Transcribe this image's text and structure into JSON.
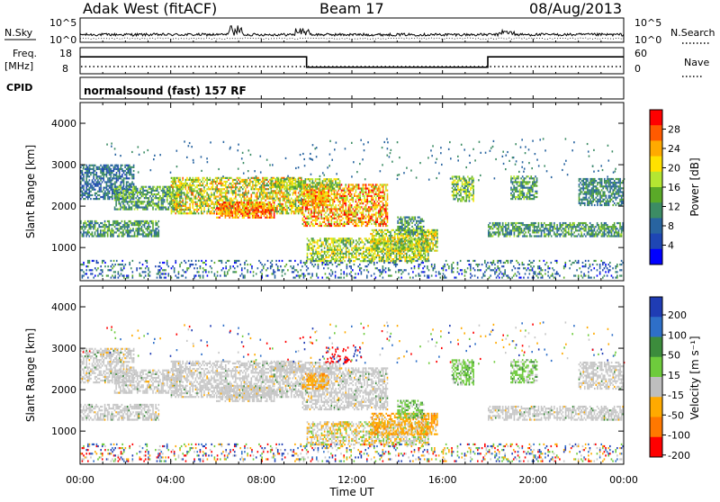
{
  "header": {
    "radar": "Adak West (fitACF)",
    "beam": "Beam 17",
    "date": "08/Aug/2013"
  },
  "strips": {
    "nsky_label": "N.Sky",
    "nsearch_label": "N.Search",
    "freq_label_line1": "Freq.",
    "freq_label_line2": "[MHz]",
    "nave_label": "Nave",
    "cpid_label": "CPID",
    "cpid_text": "normalsound (fast) 157 RF",
    "noise_ticks_left": [
      "10^5",
      "10^0"
    ],
    "noise_ticks_right": [
      "10^5",
      "10^0"
    ],
    "freq_ticks": [
      "18",
      "8"
    ],
    "nave_ticks": [
      "60",
      "0"
    ]
  },
  "colorbars": {
    "power": {
      "title": "Power [dB]",
      "ticks": [
        "28",
        "24",
        "20",
        "16",
        "12",
        "8",
        "4"
      ],
      "colors": [
        "#ff0000",
        "#ff5a00",
        "#ffaa00",
        "#ffe100",
        "#b4e632",
        "#5aaa28",
        "#3c8c64",
        "#2864a0",
        "#1e46b4",
        "#0000ff"
      ]
    },
    "velocity": {
      "title": "Velocity [m s⁻¹]",
      "ticks": [
        "200",
        "100",
        "50",
        "15",
        "-15",
        "-50",
        "-100",
        "-200"
      ],
      "colors": [
        "#1f3cb4",
        "#2e6fc8",
        "#3c8c3c",
        "#6ecb3c",
        "#bebebe",
        "#ffaa00",
        "#ff7800",
        "#ff0000"
      ]
    }
  },
  "chart_data": [
    {
      "type": "heatmap",
      "name_printed": "Power [dB]",
      "ylabel": "Slant Range [km]",
      "xlabel": "Time UT",
      "ylim": [
        200,
        4500
      ],
      "y_ticks": [
        "1000",
        "2000",
        "3000",
        "4000"
      ],
      "x_ticks": [
        "00:00",
        "04:00",
        "08:00",
        "12:00",
        "16:00",
        "20:00",
        "00:00"
      ],
      "xlim_hours": [
        0,
        24
      ]
    },
    {
      "type": "heatmap",
      "name_printed": "Velocity [m s⁻¹]",
      "ylabel": "Slant Range [km]",
      "xlabel": "Time UT",
      "ylim": [
        200,
        4500
      ],
      "y_ticks": [
        "1000",
        "2000",
        "3000",
        "4000"
      ],
      "x_ticks": [
        "00:00",
        "04:00",
        "08:00",
        "12:00",
        "16:00",
        "20:00",
        "00:00"
      ],
      "xlim_hours": [
        0,
        24
      ]
    },
    {
      "type": "line",
      "name_printed": "Freq.",
      "unit": "MHz",
      "ylim": [
        8,
        18
      ],
      "steps": [
        {
          "from_hour": 0,
          "to_hour": 10.0,
          "value": 14.5
        },
        {
          "from_hour": 10.0,
          "to_hour": 18.0,
          "value": 10.5
        },
        {
          "from_hour": 18.0,
          "to_hour": 24,
          "value": 14.5
        }
      ]
    }
  ]
}
